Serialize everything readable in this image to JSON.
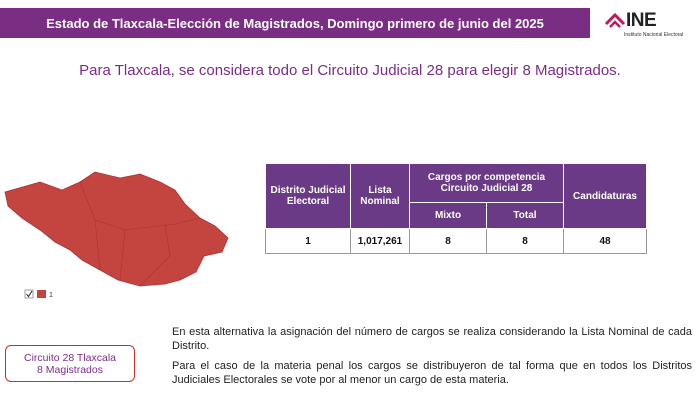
{
  "header": {
    "title": "Estado de Tlaxcala-Elección de Magistrados, Domingo primero de junio del 2025",
    "logo": "INE",
    "logo_subtitle": "Instituto Nacional Electoral"
  },
  "subtitle": "Para Tlaxcala, se considera todo el Circuito Judicial 28 para elegir 8 Magistrados.",
  "map": {
    "legend_label": "1"
  },
  "table": {
    "headers": [
      "Distrito Judicial Electoral",
      "Lista Nominal",
      "Cargos por competencia Circuito Judicial 28",
      "Candidaturas"
    ],
    "subheaders": [
      "Mixto",
      "Total"
    ],
    "rows": [
      [
        "1",
        "1,017,261",
        "8",
        "8",
        "48"
      ]
    ]
  },
  "callout": [
    "Circuito 28 Tlaxcala",
    "8 Magistrados"
  ],
  "paragraphs": [
    "En esta alternativa la asignación del número de cargos se realiza considerando la Lista Nominal de cada Distrito.",
    "Para el caso de la materia penal los cargos se distribuyeron de tal forma que en todos los Distritos Judiciales Electorales se vote por al menor un cargo de esta materia."
  ]
}
